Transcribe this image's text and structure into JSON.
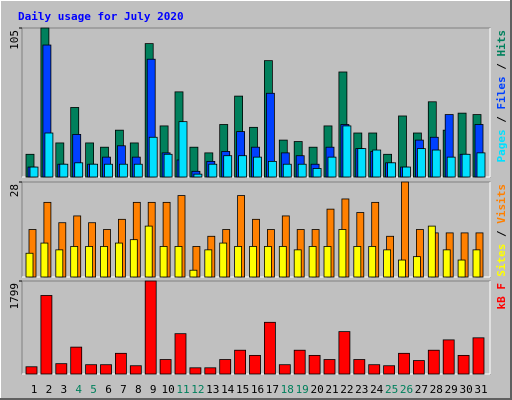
{
  "chart_data": [
    {
      "type": "bar",
      "title": "Daily usage for July 2020",
      "ylim": [
        0,
        105
      ],
      "yticks": [
        105
      ],
      "legend_separator": " / ",
      "series": [
        {
          "name": "Hits",
          "color": "#00805C",
          "values": [
            16,
            105,
            24,
            49,
            24,
            21,
            33,
            24,
            94,
            36,
            60,
            21,
            17,
            37,
            57,
            35,
            82,
            26,
            25,
            21,
            36,
            74,
            31,
            31,
            16,
            43,
            31,
            53,
            33,
            45,
            44
          ]
        },
        {
          "name": "Files",
          "color": "#0040FF",
          "values": [
            7,
            93,
            9,
            30,
            9,
            14,
            22,
            14,
            83,
            17,
            12,
            4,
            11,
            18,
            32,
            21,
            59,
            17,
            15,
            9,
            21,
            37,
            20,
            18,
            10,
            7,
            26,
            28,
            44,
            16,
            37
          ]
        },
        {
          "name": "Pages",
          "color": "#00E0FF",
          "values": [
            7,
            31,
            9,
            10,
            9,
            9,
            9,
            9,
            28,
            16,
            39,
            2,
            9,
            15,
            15,
            14,
            11,
            9,
            9,
            6,
            14,
            36,
            20,
            19,
            10,
            7,
            20,
            19,
            14,
            16,
            17
          ]
        }
      ]
    },
    {
      "type": "bar",
      "ylim": [
        0,
        28
      ],
      "yticks": [
        28
      ],
      "legend_separator": " / ",
      "series": [
        {
          "name": "Visits",
          "color": "#FF8000",
          "values": [
            14,
            22,
            16,
            18,
            16,
            14,
            17,
            22,
            22,
            22,
            24,
            9,
            12,
            14,
            24,
            17,
            14,
            18,
            14,
            14,
            20,
            23,
            19,
            22,
            12,
            28,
            14,
            13,
            13,
            13,
            13
          ]
        },
        {
          "name": "Sites",
          "color": "#FFFF00",
          "values": [
            7,
            10,
            8,
            9,
            9,
            9,
            10,
            11,
            15,
            9,
            9,
            2,
            8,
            10,
            9,
            9,
            9,
            9,
            8,
            9,
            9,
            14,
            9,
            9,
            8,
            5,
            6,
            15,
            8,
            5,
            8
          ]
        }
      ]
    },
    {
      "type": "bar",
      "ylim": [
        0,
        1799
      ],
      "yticks": [
        1799
      ],
      "categories": [
        "1",
        "2",
        "3",
        "4",
        "5",
        "6",
        "7",
        "8",
        "9",
        "10",
        "11",
        "12",
        "13",
        "14",
        "15",
        "16",
        "17",
        "18",
        "19",
        "20",
        "21",
        "22",
        "23",
        "24",
        "25",
        "26",
        "27",
        "28",
        "29",
        "30",
        "31"
      ],
      "category_colors": [
        "#000000",
        "#000000",
        "#000000",
        "#00805C",
        "#00805C",
        "#000000",
        "#000000",
        "#000000",
        "#000000",
        "#000000",
        "#00805C",
        "#00805C",
        "#000000",
        "#000000",
        "#000000",
        "#000000",
        "#000000",
        "#00805C",
        "#00805C",
        "#000000",
        "#000000",
        "#000000",
        "#000000",
        "#000000",
        "#00805C",
        "#00805C",
        "#000000",
        "#000000",
        "#000000",
        "#000000",
        "#000000"
      ],
      "series": [
        {
          "name": "kB F",
          "color": "#FF0000",
          "values": [
            140,
            1519,
            200,
            520,
            180,
            180,
            400,
            160,
            1799,
            280,
            780,
            120,
            120,
            280,
            460,
            360,
            1000,
            180,
            460,
            360,
            280,
            820,
            280,
            180,
            160,
            400,
            260,
            460,
            660,
            360,
            700
          ]
        }
      ]
    }
  ]
}
